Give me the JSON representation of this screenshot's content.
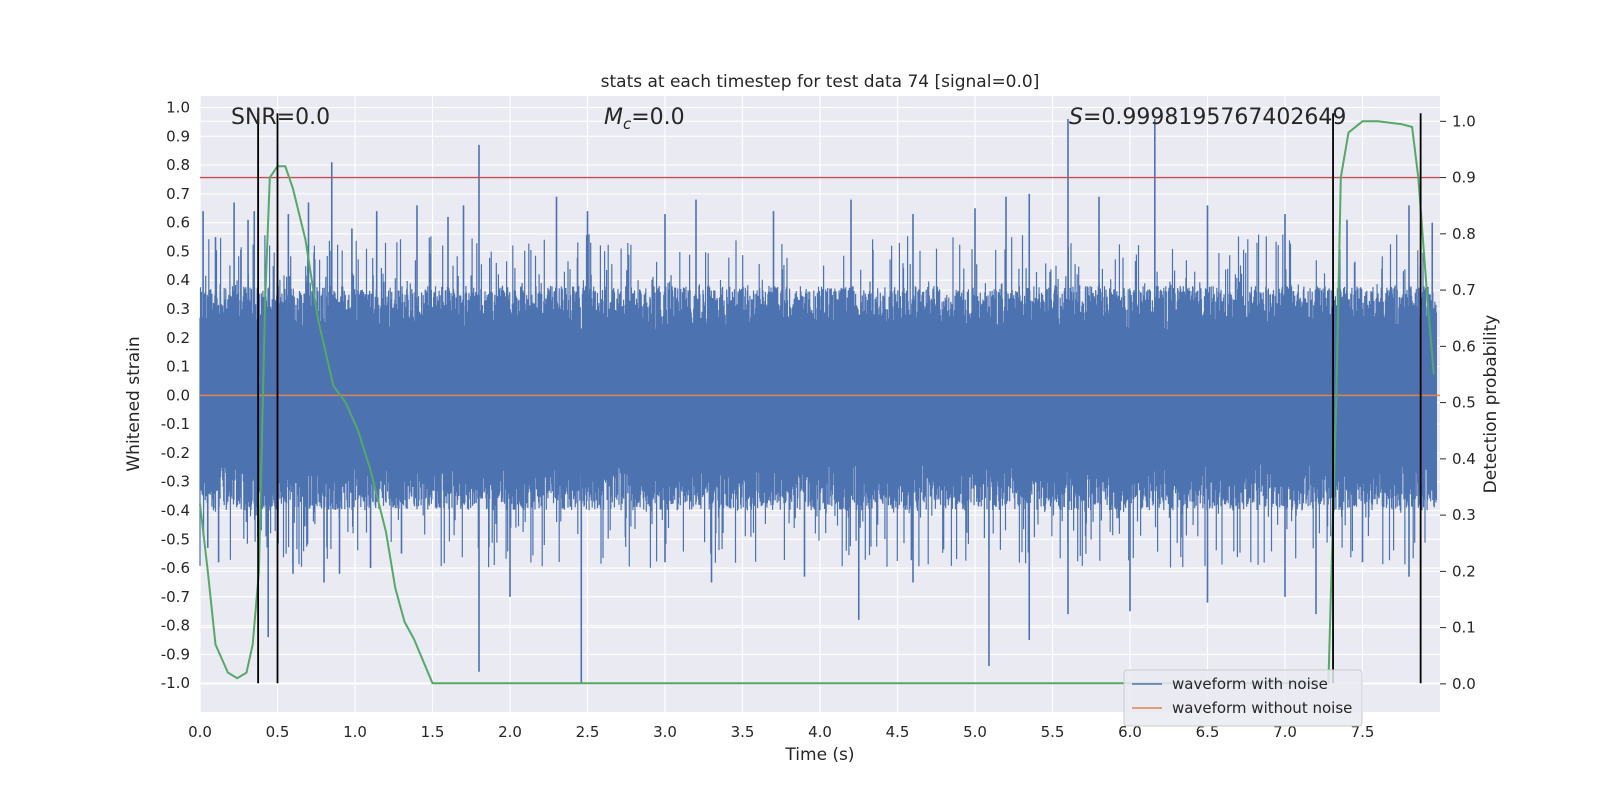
{
  "chart_data": {
    "type": "line",
    "title": "stats at each timestep for test data 74 [signal=0.0]",
    "xlabel": "Time (s)",
    "ylabel": "Whitened strain",
    "y2label": "Detection probability",
    "xlim": [
      0.0,
      8.0
    ],
    "ylim": [
      -1.1,
      1.04
    ],
    "y2lim": [
      -0.05,
      1.045
    ],
    "x_ticks": [
      "0.0",
      "0.5",
      "1.0",
      "1.5",
      "2.0",
      "2.5",
      "3.0",
      "3.5",
      "4.0",
      "4.5",
      "5.0",
      "5.5",
      "6.0",
      "6.5",
      "7.0",
      "7.5"
    ],
    "y_ticks": [
      "1.0",
      "0.9",
      "0.8",
      "0.7",
      "0.6",
      "0.5",
      "0.4",
      "0.3",
      "0.2",
      "0.1",
      "0.0",
      "-0.1",
      "-0.2",
      "-0.3",
      "-0.4",
      "-0.5",
      "-0.6",
      "-0.7",
      "-0.8",
      "-0.9",
      "-1.0"
    ],
    "y2_ticks": [
      "1.0",
      "0.9",
      "0.8",
      "0.7",
      "0.6",
      "0.5",
      "0.4",
      "0.3",
      "0.2",
      "0.1",
      "0.0"
    ],
    "grid": true,
    "legend_position": "lower-right",
    "annotations": {
      "snr": "SNR=0.0",
      "mc_symbol": "M",
      "mc_sub": "c",
      "mc_value": "=0.0",
      "s_symbol": "S",
      "s_value": "=0.9998195767402649"
    },
    "series": [
      {
        "name": "waveform with noise",
        "color": "#4c72b0",
        "axis": "left",
        "noise_band": [
          -0.4,
          0.38
        ],
        "spikes_up": [
          [
            0.02,
            0.64
          ],
          [
            0.1,
            0.55
          ],
          [
            0.22,
            0.67
          ],
          [
            0.31,
            0.61
          ],
          [
            0.35,
            0.64
          ],
          [
            0.5,
            0.52
          ],
          [
            0.57,
            0.63
          ],
          [
            0.7,
            0.67
          ],
          [
            0.85,
            0.81
          ],
          [
            0.98,
            0.58
          ],
          [
            1.14,
            0.64
          ],
          [
            1.4,
            0.66
          ],
          [
            1.6,
            0.62
          ],
          [
            1.7,
            0.66
          ],
          [
            1.8,
            0.87
          ],
          [
            2.3,
            0.69
          ],
          [
            2.5,
            0.64
          ],
          [
            3.0,
            0.63
          ],
          [
            3.2,
            0.68
          ],
          [
            3.7,
            0.64
          ],
          [
            4.2,
            0.68
          ],
          [
            4.6,
            0.63
          ],
          [
            5.0,
            0.65
          ],
          [
            5.2,
            0.69
          ],
          [
            5.35,
            0.7
          ],
          [
            5.6,
            0.96
          ],
          [
            5.8,
            0.69
          ],
          [
            6.16,
            0.96
          ],
          [
            6.5,
            0.66
          ],
          [
            7.0,
            0.63
          ],
          [
            7.4,
            0.61
          ],
          [
            7.8,
            0.66
          ],
          [
            7.95,
            0.6
          ]
        ],
        "spikes_down": [
          [
            0.05,
            -0.53
          ],
          [
            0.12,
            -0.58
          ],
          [
            0.3,
            -0.44
          ],
          [
            0.44,
            -0.84
          ],
          [
            0.6,
            -0.62
          ],
          [
            0.8,
            -0.65
          ],
          [
            0.9,
            -0.62
          ],
          [
            1.1,
            -0.6
          ],
          [
            1.3,
            -0.55
          ],
          [
            1.8,
            -0.96
          ],
          [
            2.0,
            -0.7
          ],
          [
            2.46,
            -1.0
          ],
          [
            3.0,
            -0.58
          ],
          [
            3.3,
            -0.65
          ],
          [
            3.9,
            -0.63
          ],
          [
            4.25,
            -0.78
          ],
          [
            4.6,
            -0.65
          ],
          [
            5.09,
            -0.94
          ],
          [
            5.35,
            -0.85
          ],
          [
            5.6,
            -0.76
          ],
          [
            6.0,
            -0.75
          ],
          [
            6.5,
            -0.72
          ],
          [
            7.0,
            -0.7
          ],
          [
            7.2,
            -0.76
          ],
          [
            7.5,
            -0.58
          ],
          [
            7.8,
            -0.63
          ]
        ]
      },
      {
        "name": "waveform without noise",
        "color": "#dd8452",
        "axis": "left",
        "x": [
          0.0,
          8.0
        ],
        "y": [
          0.0,
          0.0
        ]
      },
      {
        "name": "",
        "color": "#55a868",
        "axis": "right",
        "x": [
          0.0,
          0.05,
          0.1,
          0.18,
          0.24,
          0.3,
          0.34,
          0.38,
          0.42,
          0.45,
          0.5,
          0.55,
          0.6,
          0.68,
          0.76,
          0.86,
          0.94,
          1.02,
          1.1,
          1.2,
          1.26,
          1.32,
          1.38,
          1.5,
          2.0,
          3.0,
          4.0,
          5.0,
          6.0,
          7.0,
          7.28,
          7.33,
          7.36,
          7.41,
          7.5,
          7.6,
          7.75,
          7.82,
          7.86,
          7.92,
          7.96
        ],
        "y": [
          0.32,
          0.2,
          0.07,
          0.02,
          0.01,
          0.02,
          0.07,
          0.2,
          0.68,
          0.9,
          0.92,
          0.92,
          0.88,
          0.79,
          0.65,
          0.53,
          0.5,
          0.45,
          0.38,
          0.27,
          0.17,
          0.11,
          0.08,
          0.001,
          0.001,
          0.001,
          0.001,
          0.001,
          0.001,
          0.001,
          0.001,
          0.5,
          0.9,
          0.98,
          1.0,
          1.0,
          0.995,
          0.99,
          0.9,
          0.68,
          0.55
        ]
      }
    ],
    "hlines": [
      {
        "axis": "right",
        "y": 0.9,
        "color": "#c44e52"
      }
    ],
    "vlines": {
      "x": [
        0.375,
        0.5,
        7.31,
        7.875
      ],
      "color": "#000000",
      "y_range": [
        -1.0,
        0.98
      ]
    }
  }
}
